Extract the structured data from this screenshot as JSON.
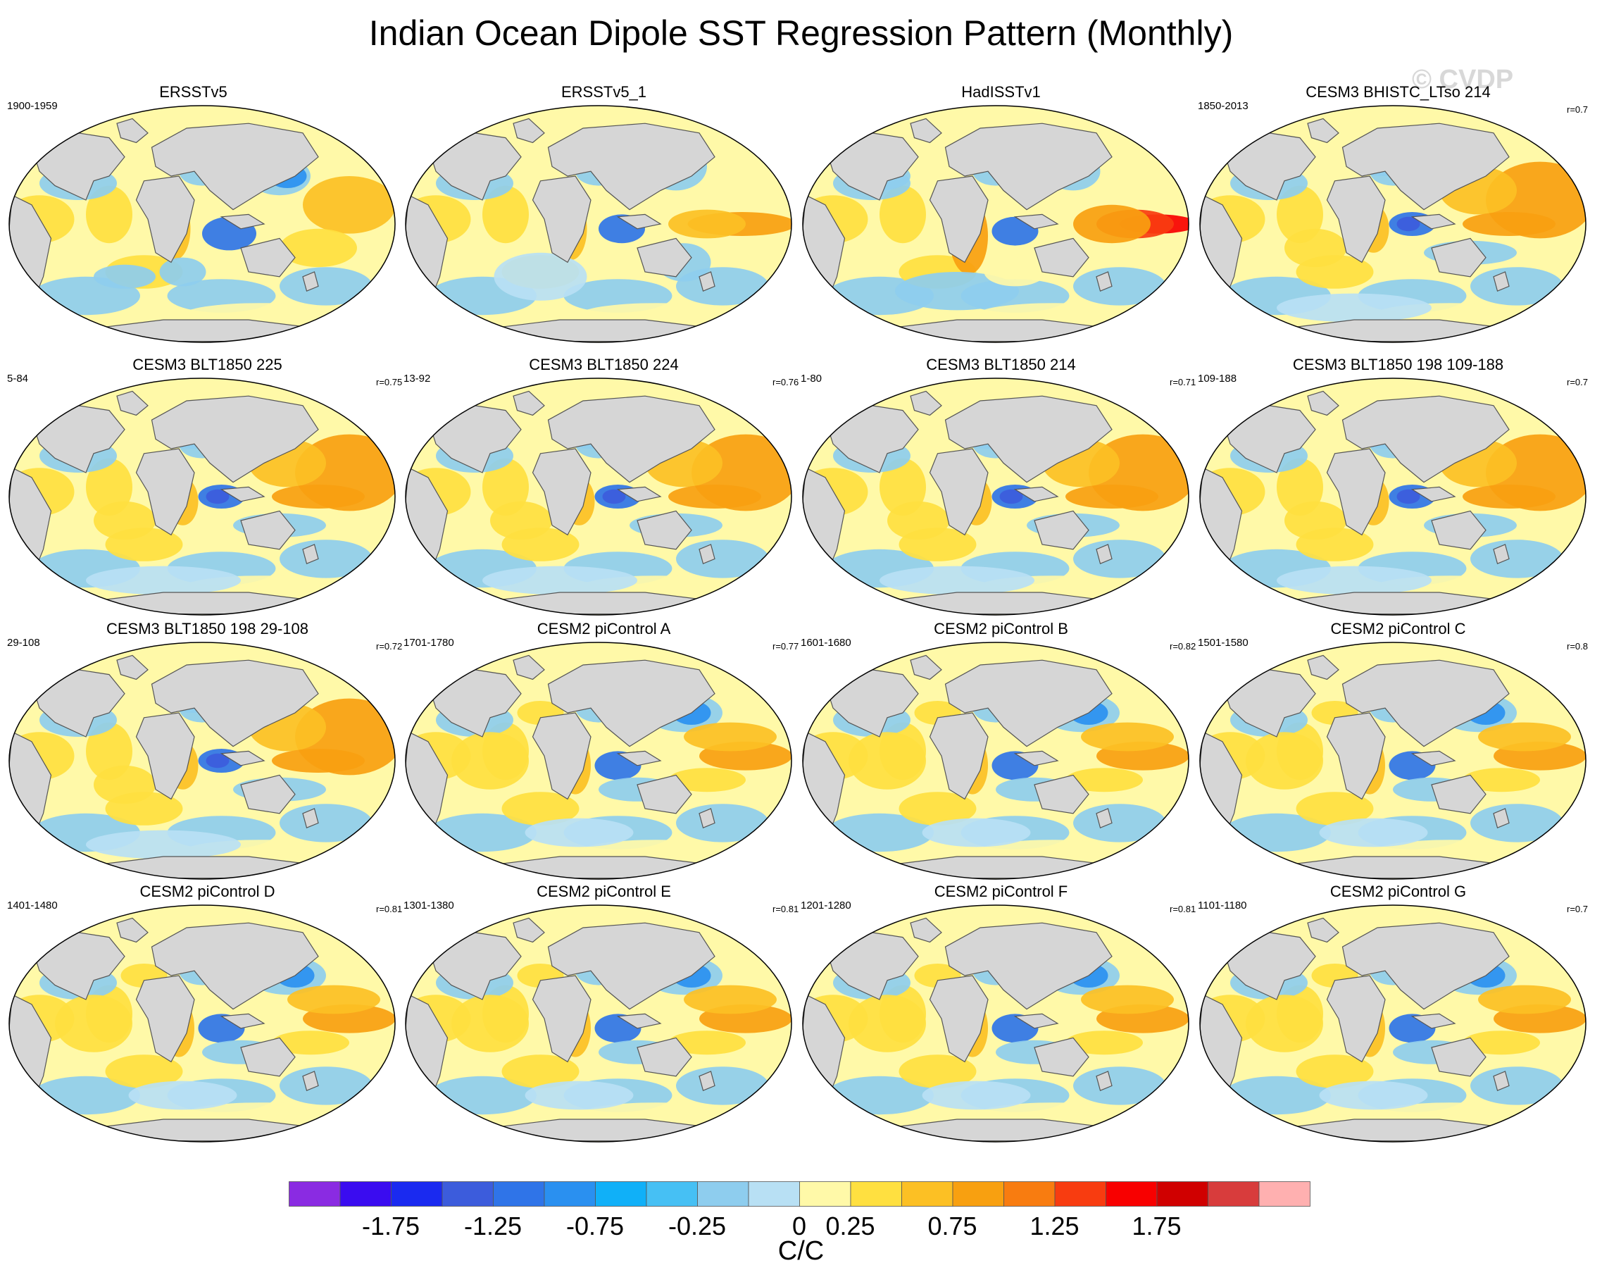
{
  "title": "Indian Ocean Dipole SST Regression Pattern (Monthly)",
  "watermark": "© CVDP",
  "panels": [
    {
      "title": "ERSSTv5",
      "period": "1900-1959",
      "corr": "",
      "style": "obs1"
    },
    {
      "title": "ERSSTv5_1",
      "period": "",
      "corr": "",
      "style": "obs2"
    },
    {
      "title": "HadISSTv1",
      "period": "",
      "corr": "",
      "style": "obs3"
    },
    {
      "title": "CESM3 BHISTC_LTso 214",
      "period": "1850-2013",
      "corr": "r=0.7",
      "style": "model"
    },
    {
      "title": "CESM3 BLT1850 225",
      "period": "5-84",
      "corr": "r=0.75",
      "style": "model"
    },
    {
      "title": "CESM3 BLT1850 224",
      "period": "13-92",
      "corr": "r=0.76",
      "style": "model"
    },
    {
      "title": "CESM3 BLT1850 214",
      "period": "1-80",
      "corr": "r=0.71",
      "style": "model"
    },
    {
      "title": "CESM3 BLT1850 198 109-188",
      "period": "109-188",
      "corr": "r=0.7",
      "style": "model"
    },
    {
      "title": "CESM3 BLT1850 198 29-108",
      "period": "29-108",
      "corr": "r=0.72",
      "style": "model"
    },
    {
      "title": "CESM2 piControl A",
      "period": "1701-1780",
      "corr": "r=0.77",
      "style": "cesm2"
    },
    {
      "title": "CESM2 piControl B",
      "period": "1601-1680",
      "corr": "r=0.82",
      "style": "cesm2"
    },
    {
      "title": "CESM2 piControl C",
      "period": "1501-1580",
      "corr": "r=0.8",
      "style": "cesm2"
    },
    {
      "title": "CESM2 piControl D",
      "period": "1401-1480",
      "corr": "r=0.81",
      "style": "cesm2"
    },
    {
      "title": "CESM2 piControl E",
      "period": "1301-1380",
      "corr": "r=0.81",
      "style": "cesm2"
    },
    {
      "title": "CESM2 piControl F",
      "period": "1201-1280",
      "corr": "r=0.81",
      "style": "cesm2"
    },
    {
      "title": "CESM2 piControl G",
      "period": "1101-1180",
      "corr": "r=0.7",
      "style": "cesm2"
    }
  ],
  "colorbar": {
    "colors": [
      "#8a2be2",
      "#3a0cf0",
      "#1a2af0",
      "#3c5cdc",
      "#2f74e8",
      "#2a90f0",
      "#10b0f8",
      "#46c0f4",
      "#8ecdee",
      "#b8e0f4",
      "#fff9a8",
      "#ffe040",
      "#fcc024",
      "#f8a010",
      "#f87c10",
      "#f83c10",
      "#f80000",
      "#d00000",
      "#d83c3c",
      "#ffb0b0"
    ],
    "labels": [
      "-1.75",
      "-1.25",
      "-0.75",
      "-0.25",
      "0",
      "0.25",
      "0.75",
      "1.25",
      "1.75"
    ],
    "units": "C/C"
  }
}
